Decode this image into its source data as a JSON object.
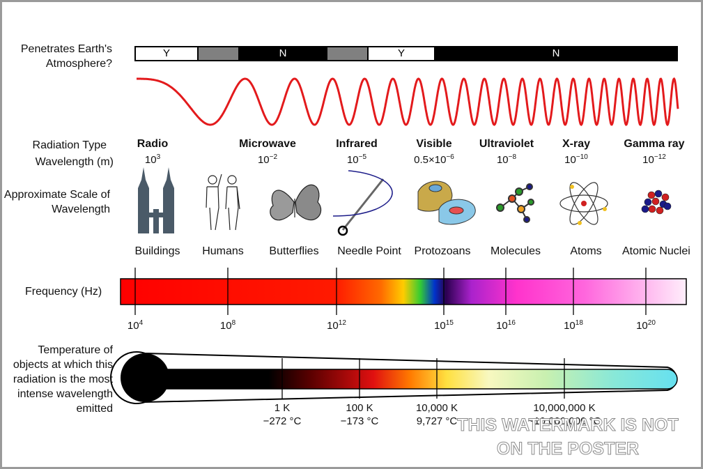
{
  "atmosphere": {
    "label": "Penetrates Earth's Atmosphere?",
    "segments": [
      {
        "text": "Y",
        "fill": "#ffffff",
        "color": "#000000"
      },
      {
        "text": "",
        "fill": "#808080",
        "color": "#000000"
      },
      {
        "text": "N",
        "fill": "#000000",
        "color": "#ffffff"
      },
      {
        "text": "",
        "fill": "#808080",
        "color": "#000000"
      },
      {
        "text": "Y",
        "fill": "#ffffff",
        "color": "#000000"
      },
      {
        "text": "N",
        "fill": "#000000",
        "color": "#ffffff"
      }
    ]
  },
  "wave_color": "#e31a1c",
  "row_labels": {
    "radiation_type": "Radiation Type",
    "wavelength": "Wavelength (m)",
    "scale": "Approximate Scale of Wavelength",
    "frequency": "Frequency (Hz)",
    "temperature": "Temperature of objects at which this radiation is the most intense wavelength emitted"
  },
  "radiation_types": [
    {
      "name": "Radio",
      "base": "10",
      "exp": "3",
      "prefix": "",
      "scale": "Buildings",
      "icon": "buildings-icon"
    },
    {
      "name": "Microwave",
      "base": "10",
      "exp": "−2",
      "prefix": "",
      "scale": "Humans",
      "icon": "humans-icon"
    },
    {
      "name": "Infrared",
      "base": "10",
      "exp": "−5",
      "prefix": "",
      "scale": "Butterflies",
      "icon": "butterfly-icon"
    },
    {
      "name": "Visible",
      "base": "10",
      "exp": "−6",
      "prefix": "0.5×",
      "scale": "Needle Point",
      "icon": "needle-icon"
    },
    {
      "name": "Ultraviolet",
      "base": "10",
      "exp": "−8",
      "prefix": "",
      "scale": "Protozoans",
      "icon": "protozoan-icon"
    },
    {
      "name": "X-ray",
      "base": "10",
      "exp": "−10",
      "prefix": "",
      "scale": "Molecules",
      "icon": "molecule-icon"
    },
    {
      "name": "Gamma ray",
      "base": "10",
      "exp": "−12",
      "prefix": "",
      "scale": "Atoms",
      "icon": "atom-icon"
    },
    {
      "name": "",
      "base": "",
      "exp": "",
      "prefix": "",
      "scale": "Atomic Nuclei",
      "icon": "nucleus-icon"
    }
  ],
  "frequency_ticks": [
    {
      "base": "10",
      "exp": "4"
    },
    {
      "base": "10",
      "exp": "8"
    },
    {
      "base": "10",
      "exp": "12"
    },
    {
      "base": "10",
      "exp": "15"
    },
    {
      "base": "10",
      "exp": "16"
    },
    {
      "base": "10",
      "exp": "18"
    },
    {
      "base": "10",
      "exp": "20"
    }
  ],
  "temperature_ticks": [
    {
      "kelvin": "1 K",
      "celsius": "−272 °C"
    },
    {
      "kelvin": "100 K",
      "celsius": "−173 °C"
    },
    {
      "kelvin": "10,000 K",
      "celsius": "9,727 °C"
    },
    {
      "kelvin": "10,000,000 K",
      "celsius": "~10,000,000 °C"
    }
  ],
  "watermark": {
    "line1": "THIS WATERMARK IS NOT",
    "line2": "ON THE POSTER"
  }
}
